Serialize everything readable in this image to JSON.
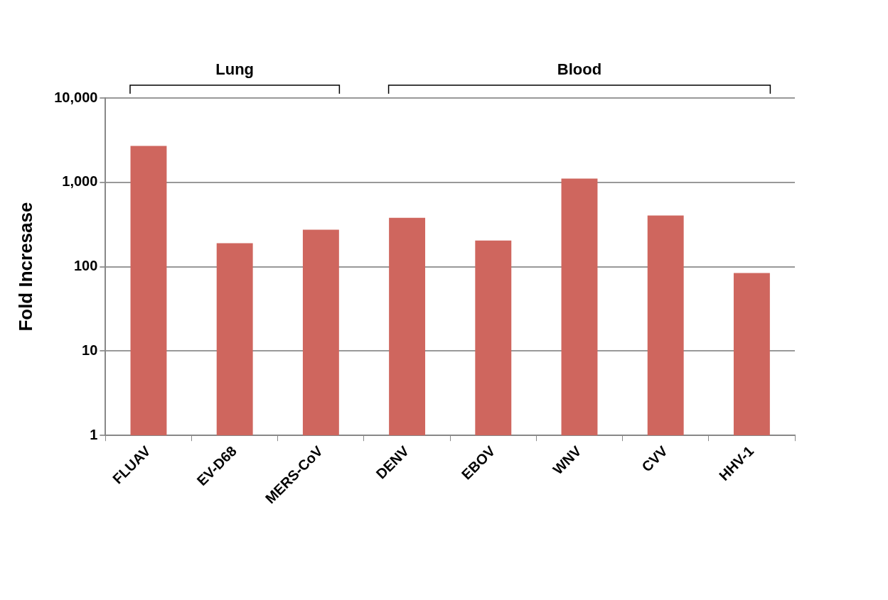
{
  "chart_data": {
    "type": "bar",
    "ylabel": "Fold Incresase",
    "categories": [
      "FLUAV",
      "EV-D68",
      "MERS-CoV",
      "DENV",
      "EBOV",
      "WNV",
      "CVV",
      "HHV-1"
    ],
    "values": [
      2700,
      190,
      275,
      380,
      204,
      1110,
      405,
      84
    ],
    "color": "#cf665e",
    "log": "y",
    "ylim": [
      1,
      10000
    ],
    "yticks": [
      1,
      10,
      100,
      {
        "value": 1000,
        "label": "1,000"
      },
      {
        "value": 10000,
        "label": "10,000"
      }
    ],
    "grid": "y",
    "legend": false,
    "annotations": [
      "Lung",
      "Blood"
    ]
  }
}
